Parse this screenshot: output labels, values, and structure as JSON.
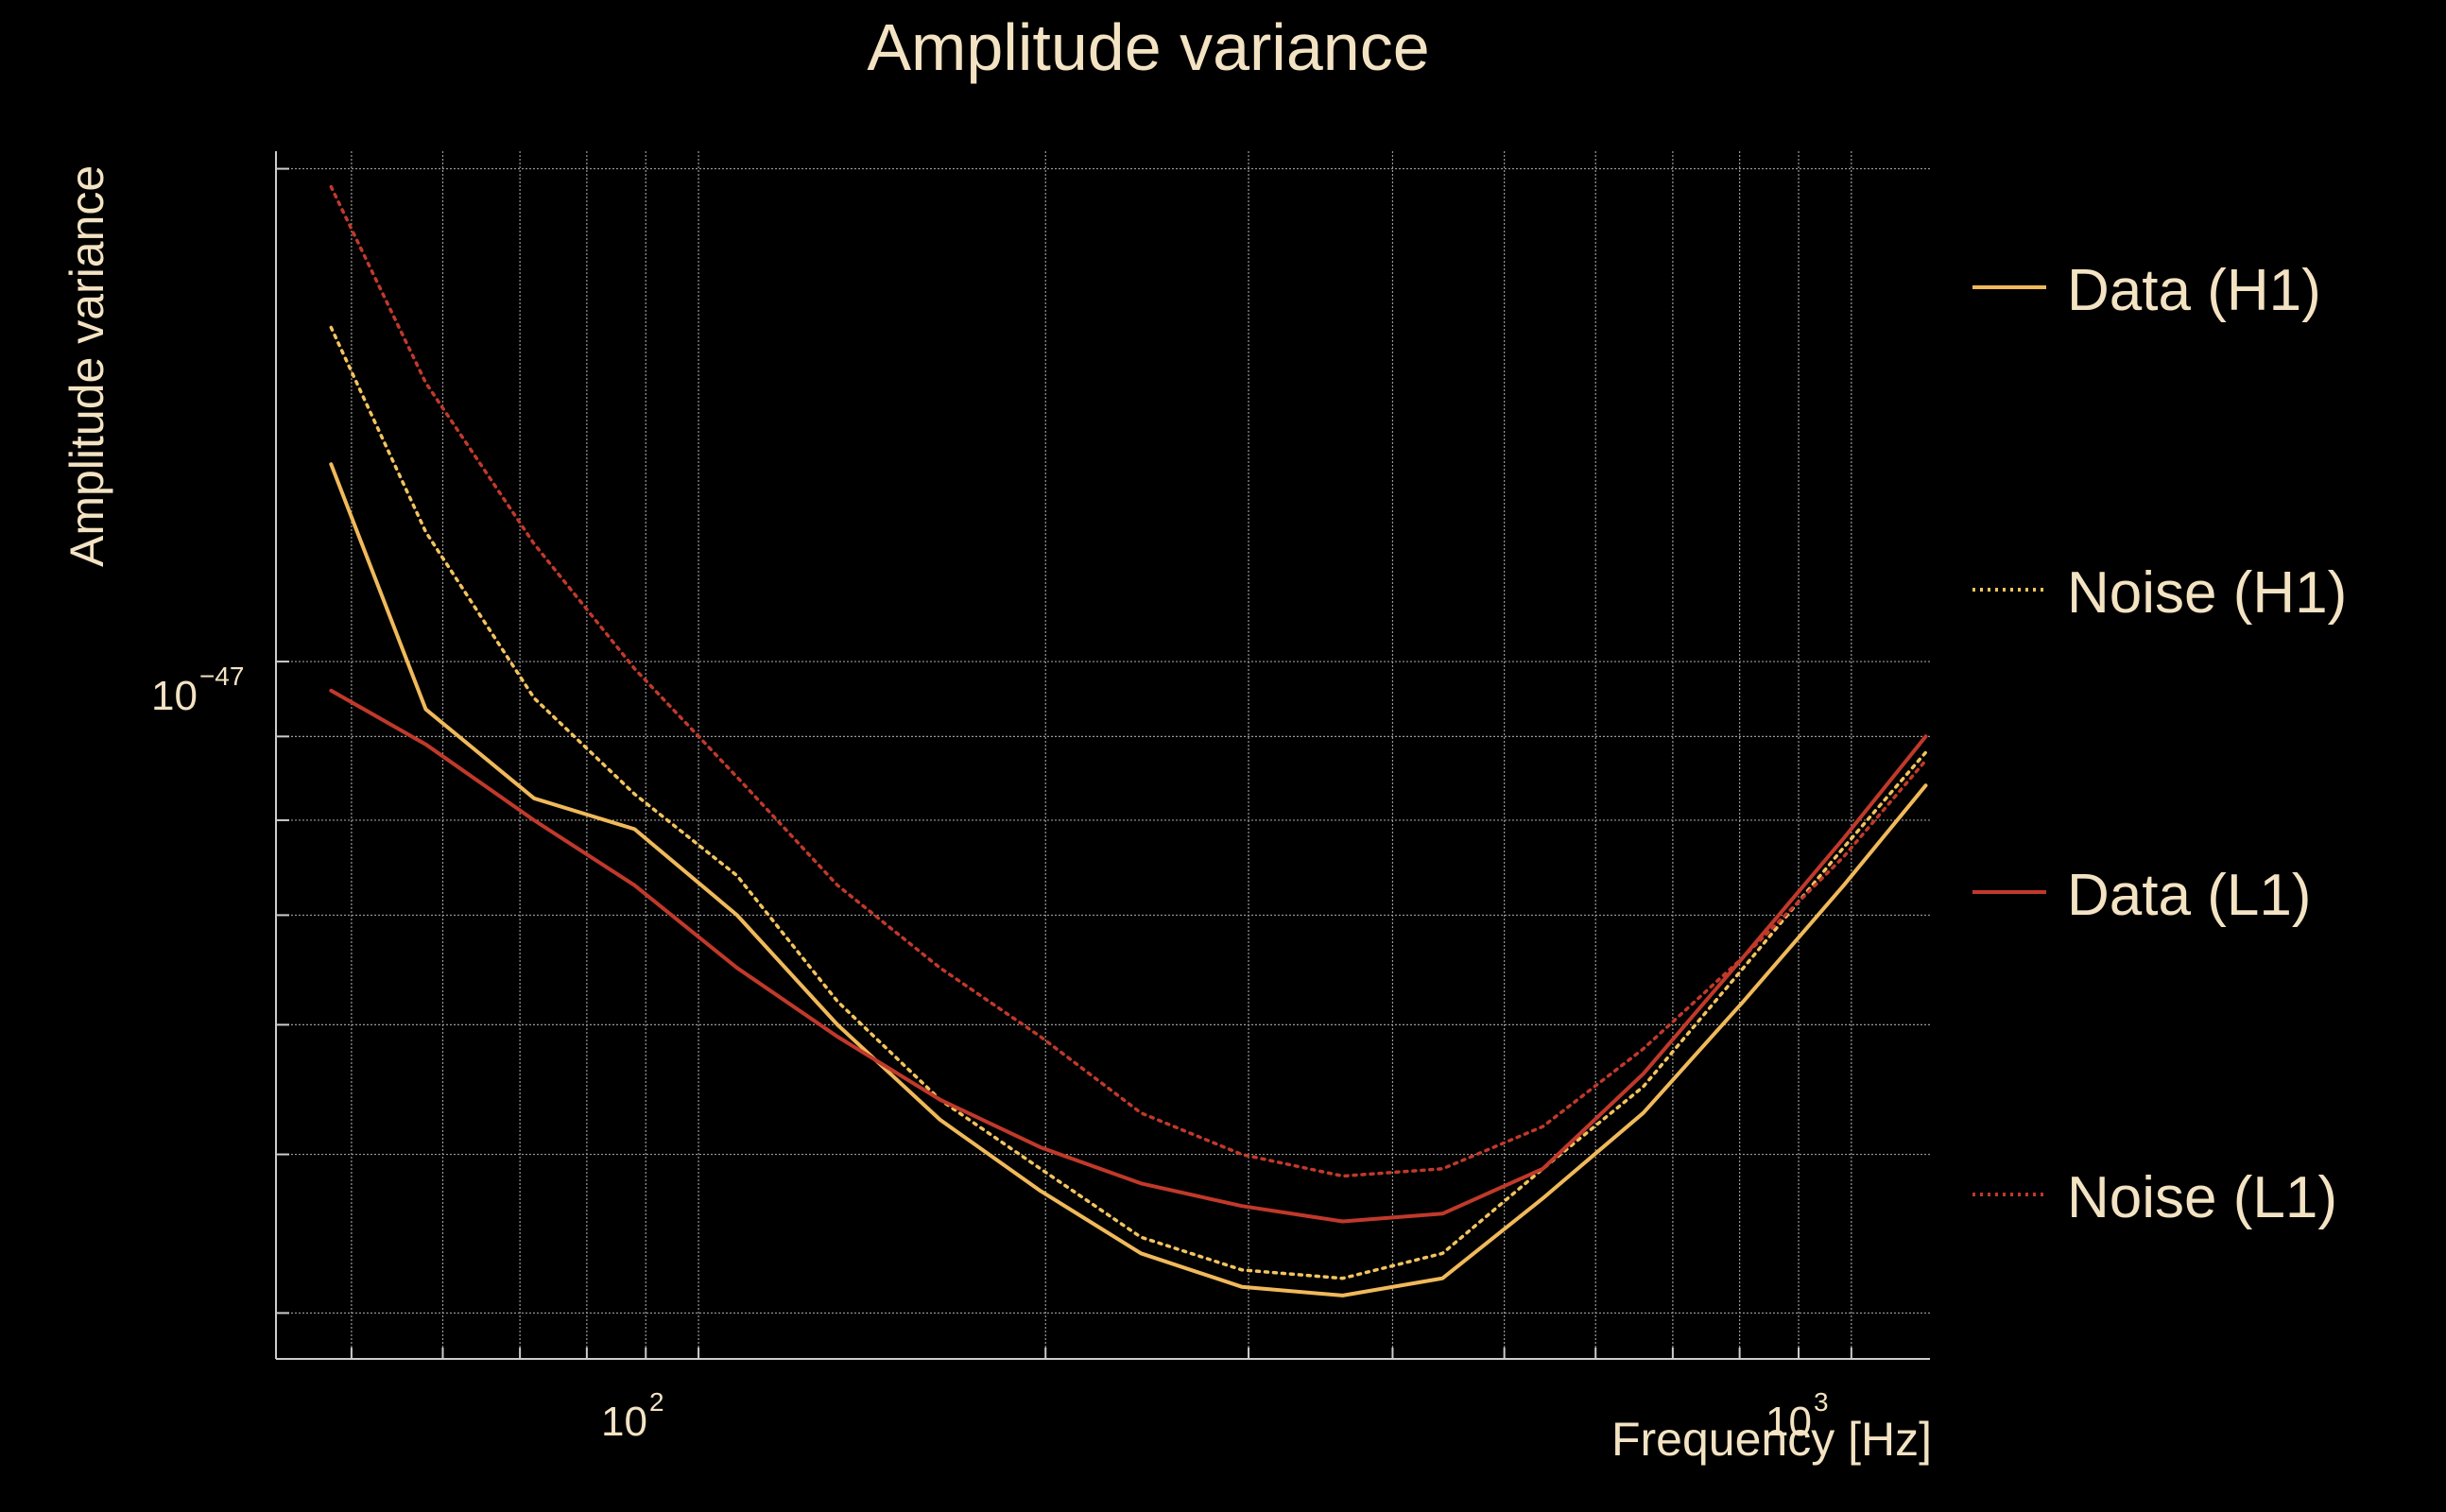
{
  "chart_data": {
    "type": "line",
    "title": "Amplitude variance",
    "xlabel": "Frequency [Hz]",
    "ylabel": "Amplitude variance",
    "xscale": "log",
    "yscale": "log",
    "xlim": [
      43,
      1170
    ],
    "ylim": [
      3.75e-48,
      2.05e-47
    ],
    "grid": true,
    "legend_position": "right",
    "x_tick_labels": [
      {
        "base": "10",
        "exp": "2",
        "value": 100
      },
      {
        "base": "10",
        "exp": "3",
        "value": 1000
      }
    ],
    "y_tick_labels": [
      {
        "base": "10",
        "exp": "−47",
        "value": 1e-47
      }
    ],
    "x": [
      48,
      58,
      72,
      88,
      108,
      132,
      162,
      198,
      242,
      296,
      362,
      442,
      540,
      660,
      806,
      985,
      1160
    ],
    "series": [
      {
        "name": "Data (H1)",
        "color": "#f0b95a",
        "style": "solid",
        "values": [
          1.32e-47,
          9.35e-48,
          8.25e-48,
          7.9e-48,
          7e-48,
          6e-48,
          5.25e-48,
          4.75e-48,
          4.35e-48,
          4.15e-48,
          4.1e-48,
          4.2e-48,
          4.7e-48,
          5.3e-48,
          6.2e-48,
          7.3e-48,
          8.4e-48
        ]
      },
      {
        "name": "Noise (H1)",
        "color": "#f2c35f",
        "style": "dotted",
        "values": [
          1.6e-47,
          1.2e-47,
          9.5e-48,
          8.3e-48,
          7.4e-48,
          6.2e-48,
          5.4e-48,
          4.9e-48,
          4.45e-48,
          4.25e-48,
          4.2e-48,
          4.35e-48,
          4.9e-48,
          5.5e-48,
          6.5e-48,
          7.7e-48,
          8.8e-48
        ]
      },
      {
        "name": "Data (L1)",
        "color": "#c0392b",
        "style": "solid",
        "values": [
          9.6e-48,
          8.9e-48,
          8e-48,
          7.3e-48,
          6.5e-48,
          5.9e-48,
          5.4e-48,
          5.05e-48,
          4.8e-48,
          4.65e-48,
          4.55e-48,
          4.6e-48,
          4.9e-48,
          5.6e-48,
          6.6e-48,
          7.8e-48,
          9e-48
        ]
      },
      {
        "name": "Noise (L1)",
        "color": "#c0392b",
        "style": "dotted",
        "values": [
          1.95e-47,
          1.48e-47,
          1.18e-47,
          9.9e-48,
          8.5e-48,
          7.3e-48,
          6.5e-48,
          5.9e-48,
          5.3e-48,
          5e-48,
          4.85e-48,
          4.9e-48,
          5.2e-48,
          5.8e-48,
          6.6e-48,
          7.6e-48,
          8.7e-48
        ]
      }
    ]
  }
}
